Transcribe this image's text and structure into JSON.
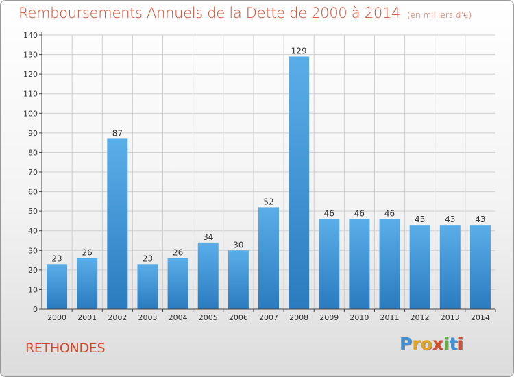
{
  "title": "Remboursements Annuels de la Dette de 2000 à 2014",
  "unit": "(en milliers d'€)",
  "commune": "RETHONDES",
  "logo": {
    "text": "Proxiti",
    "letters": [
      {
        "char": "P",
        "color": "#3f8fd4"
      },
      {
        "char": "r",
        "color": "#e3a31f"
      },
      {
        "char": "o",
        "color": "#e3a31f"
      },
      {
        "char": "x",
        "color": "#d84a2a"
      },
      {
        "char": "i",
        "color": "#5bb138"
      },
      {
        "char": "t",
        "color": "#3f8fd4"
      },
      {
        "char": "i",
        "color": "#d84a2a"
      }
    ]
  },
  "colors": {
    "title": "#d24b2e",
    "bar_top": "#5aaee8",
    "bar_bottom": "#2a7bbf",
    "grid": "#cfcfcf",
    "axis": "#444444"
  },
  "chart_data": {
    "type": "bar",
    "title": "Remboursements Annuels de la Dette de 2000 à 2014",
    "xlabel": "",
    "ylabel": "",
    "ylim": [
      0,
      140
    ],
    "yticks": [
      0,
      10,
      20,
      30,
      40,
      50,
      60,
      70,
      80,
      90,
      100,
      110,
      120,
      130,
      140
    ],
    "grid": true,
    "categories": [
      "2000",
      "2001",
      "2002",
      "2003",
      "2004",
      "2005",
      "2006",
      "2007",
      "2008",
      "2009",
      "2010",
      "2011",
      "2012",
      "2013",
      "2014"
    ],
    "values": [
      23,
      26,
      87,
      23,
      26,
      34,
      30,
      52,
      129,
      46,
      46,
      46,
      43,
      43,
      43
    ]
  }
}
